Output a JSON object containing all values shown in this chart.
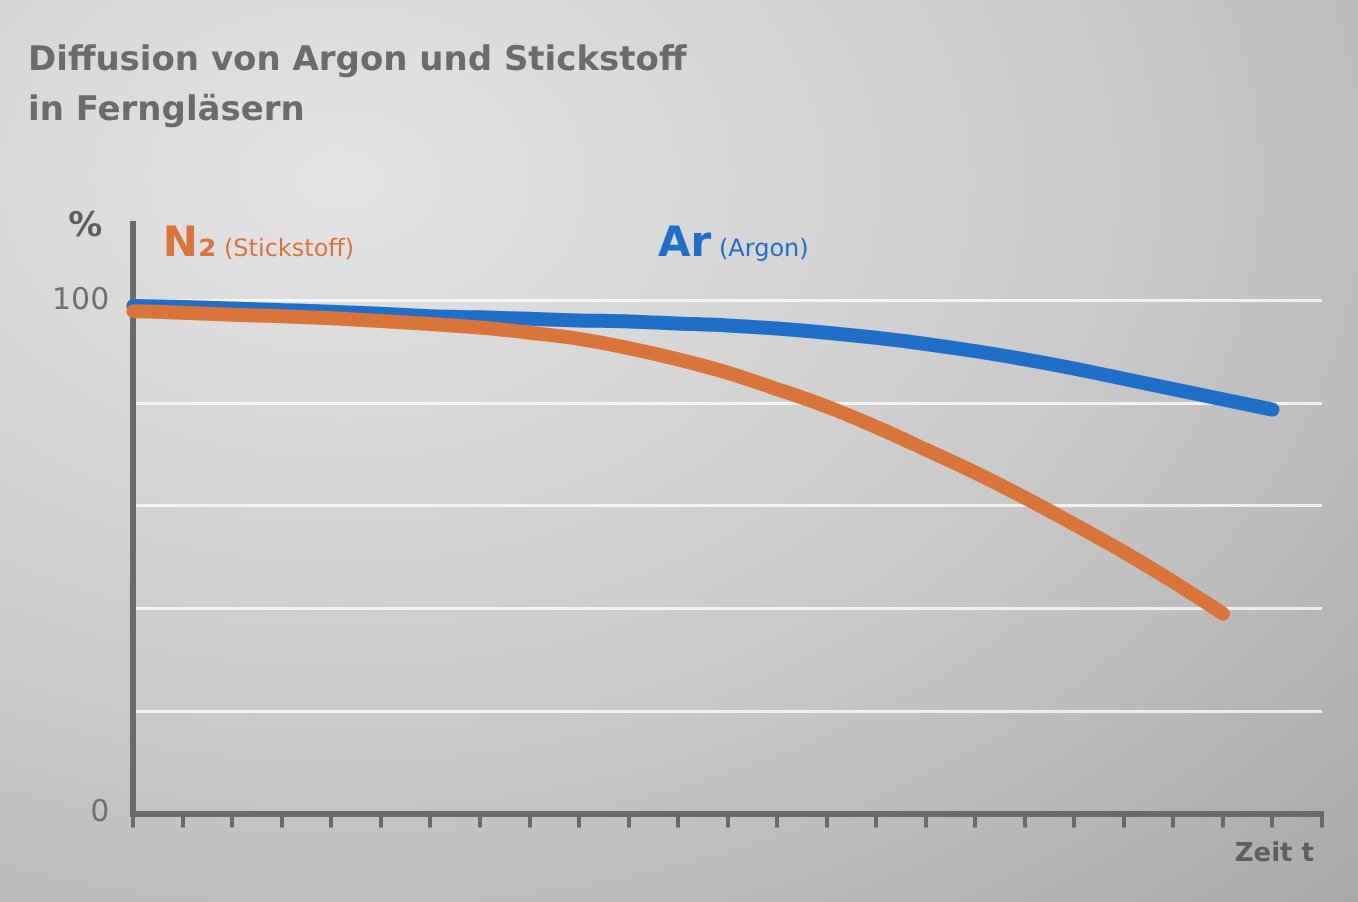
{
  "chart_data": {
    "type": "line",
    "title": "Diffusion von Argon und Stickstoff in Ferngläsern",
    "xlabel": "Zeit t",
    "ylabel": "%",
    "categories": [
      null,
      null,
      null,
      null,
      null,
      null,
      null,
      null,
      null,
      null,
      null,
      null,
      null,
      null,
      null,
      null,
      null,
      null,
      null,
      null,
      null,
      null,
      null,
      null,
      null
    ],
    "series": [
      {
        "name": "N₂ (Stickstoff)",
        "color": "#d9743a",
        "values": [
          98,
          97.7,
          97.3,
          97,
          96.6,
          96.1,
          95.5,
          94.8,
          93.8,
          92.6,
          90.8,
          88.6,
          86,
          82.8,
          79.4,
          75.4,
          71,
          66.5,
          61.6,
          56.4,
          51,
          45.2,
          39,
          null,
          null
        ]
      },
      {
        "name": "Ar (Argon)",
        "color": "#1f6fc8",
        "values": [
          99,
          98.8,
          98.5,
          98.2,
          97.9,
          97.5,
          97,
          96.8,
          96.5,
          96.2,
          96,
          95.6,
          95.2,
          94.6,
          93.8,
          92.8,
          91.6,
          90.2,
          88.6,
          86.8,
          84.8,
          82.8,
          80.8,
          78.8,
          null
        ]
      }
    ],
    "ylim": [
      0,
      115
    ],
    "yticks": [
      0,
      {
        "value": 20,
        "label": null
      },
      {
        "value": 40,
        "label": null
      },
      {
        "value": 60,
        "label": null
      },
      {
        "value": 80,
        "label": null
      },
      100
    ],
    "grid": "y",
    "legend": false,
    "marker": "none",
    "line_style": "solid"
  }
}
